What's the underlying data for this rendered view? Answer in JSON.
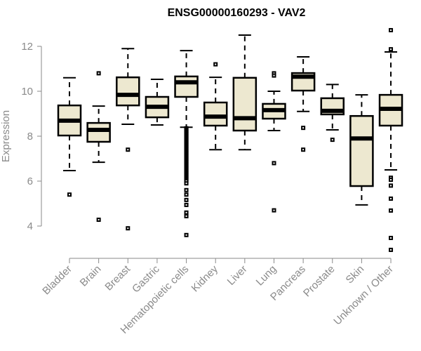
{
  "chart_data": {
    "type": "boxplot",
    "title": "ENSG00000160293 - VAV2",
    "xlabel": "",
    "ylabel": "Expression",
    "ylim": [
      3.6,
      12.8
    ],
    "yticks": [
      4,
      6,
      8,
      10,
      12
    ],
    "grid": false,
    "legend": "none",
    "colors": {
      "box_fill": "#ede8d0",
      "box_stroke": "#000000",
      "axis": "#8a8a8a"
    },
    "categories": [
      "Bladder",
      "Brain",
      "Breast",
      "Gastric",
      "Hematopoietic cells",
      "Kidney",
      "Liver",
      "Lung",
      "Pancreas",
      "Prostate",
      "Skin",
      "Unknown / Other"
    ],
    "boxes": [
      {
        "name": "Bladder",
        "whisker_low": 6.47,
        "q1": 8.03,
        "median": 8.69,
        "q3": 9.37,
        "whisker_high": 10.6,
        "outliers": [
          5.4
        ]
      },
      {
        "name": "Brain",
        "whisker_low": 6.84,
        "q1": 7.75,
        "median": 8.28,
        "q3": 8.59,
        "whisker_high": 9.34,
        "outliers": [
          10.8,
          4.28
        ]
      },
      {
        "name": "Breast",
        "whisker_low": 8.53,
        "q1": 9.37,
        "median": 9.84,
        "q3": 10.62,
        "whisker_high": 11.9,
        "outliers": [
          7.4,
          3.9
        ]
      },
      {
        "name": "Gastric",
        "whisker_low": 8.5,
        "q1": 8.84,
        "median": 9.31,
        "q3": 9.75,
        "whisker_high": 10.53,
        "outliers": []
      },
      {
        "name": "Hematopoietic cells",
        "whisker_low": 8.4,
        "q1": 9.75,
        "median": 10.4,
        "q3": 10.66,
        "whisker_high": 11.81,
        "outliers": [
          8.35,
          8.3,
          8.25,
          8.2,
          8.15,
          8.1,
          8.05,
          8.0,
          7.95,
          7.9,
          7.85,
          7.8,
          7.75,
          7.7,
          7.65,
          7.6,
          7.55,
          7.5,
          7.45,
          7.4,
          7.35,
          7.3,
          7.25,
          7.2,
          7.15,
          7.1,
          7.05,
          7.0,
          6.95,
          6.9,
          6.85,
          6.8,
          6.75,
          6.7,
          6.65,
          6.6,
          6.55,
          6.5,
          6.45,
          6.4,
          6.35,
          6.3,
          6.25,
          6.2,
          6.15,
          6.1,
          6.05,
          6.0,
          5.9,
          5.6,
          5.4,
          5.16,
          4.94,
          4.6,
          4.44,
          3.6
        ]
      },
      {
        "name": "Kidney",
        "whisker_low": 7.4,
        "q1": 8.47,
        "median": 8.87,
        "q3": 9.5,
        "whisker_high": 10.62,
        "outliers": [
          11.2
        ]
      },
      {
        "name": "Liver",
        "whisker_low": 7.4,
        "q1": 8.25,
        "median": 8.8,
        "q3": 10.6,
        "whisker_high": 12.5,
        "outliers": []
      },
      {
        "name": "Lung",
        "whisker_low": 8.25,
        "q1": 8.78,
        "median": 9.16,
        "q3": 9.44,
        "whisker_high": 10.0,
        "outliers": [
          10.8,
          10.7,
          6.8,
          4.7
        ]
      },
      {
        "name": "Pancreas",
        "whisker_low": 9.1,
        "q1": 10.03,
        "median": 10.65,
        "q3": 10.81,
        "whisker_high": 11.53,
        "outliers": [
          8.37,
          7.4
        ]
      },
      {
        "name": "Prostate",
        "whisker_low": 8.28,
        "q1": 8.97,
        "median": 9.13,
        "q3": 9.69,
        "whisker_high": 10.3,
        "outliers": [
          7.84
        ]
      },
      {
        "name": "Skin",
        "whisker_low": 4.94,
        "q1": 5.78,
        "median": 7.9,
        "q3": 8.9,
        "whisker_high": 9.84,
        "outliers": []
      },
      {
        "name": "Unknown / Other",
        "whisker_low": 6.5,
        "q1": 8.47,
        "median": 9.22,
        "q3": 9.84,
        "whisker_high": 11.75,
        "outliers": [
          12.72,
          11.87,
          6.15,
          6.06,
          5.8,
          5.22,
          4.69,
          3.47,
          2.94
        ]
      }
    ]
  }
}
